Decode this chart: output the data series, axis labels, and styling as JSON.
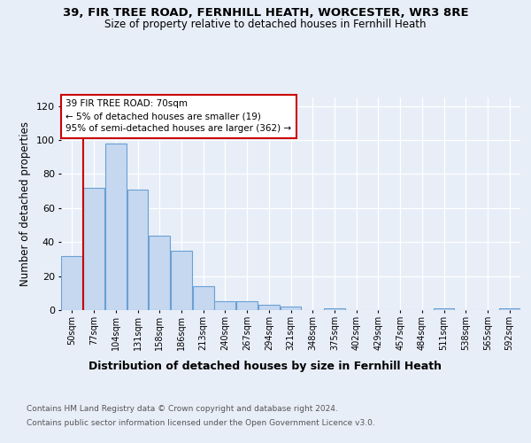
{
  "title_line1": "39, FIR TREE ROAD, FERNHILL HEATH, WORCESTER, WR3 8RE",
  "title_line2": "Size of property relative to detached houses in Fernhill Heath",
  "xlabel": "Distribution of detached houses by size in Fernhill Heath",
  "ylabel": "Number of detached properties",
  "footer_line1": "Contains HM Land Registry data © Crown copyright and database right 2024.",
  "footer_line2": "Contains public sector information licensed under the Open Government Licence v3.0.",
  "annotation_title": "39 FIR TREE ROAD: 70sqm",
  "annotation_line2": "← 5% of detached houses are smaller (19)",
  "annotation_line3": "95% of semi-detached houses are larger (362) →",
  "bar_color": "#c5d8f0",
  "bar_edge_color": "#6aa0d4",
  "highlight_color": "#cc0000",
  "categories": [
    "50sqm",
    "77sqm",
    "104sqm",
    "131sqm",
    "158sqm",
    "186sqm",
    "213sqm",
    "240sqm",
    "267sqm",
    "294sqm",
    "321sqm",
    "348sqm",
    "375sqm",
    "402sqm",
    "429sqm",
    "457sqm",
    "484sqm",
    "511sqm",
    "538sqm",
    "565sqm",
    "592sqm"
  ],
  "values": [
    32,
    72,
    98,
    71,
    44,
    35,
    14,
    5,
    5,
    3,
    2,
    0,
    1,
    0,
    0,
    0,
    0,
    1,
    0,
    0,
    1
  ],
  "ylim": [
    0,
    125
  ],
  "yticks": [
    0,
    20,
    40,
    60,
    80,
    100,
    120
  ],
  "background_color": "#e8eef8",
  "grid_color": "#ffffff",
  "title_fontsize": 9.5,
  "subtitle_fontsize": 8.5,
  "ylabel_fontsize": 8.5,
  "xlabel_fontsize": 9,
  "tick_fontsize": 7,
  "annotation_fontsize": 7.5,
  "footer_fontsize": 6.5
}
